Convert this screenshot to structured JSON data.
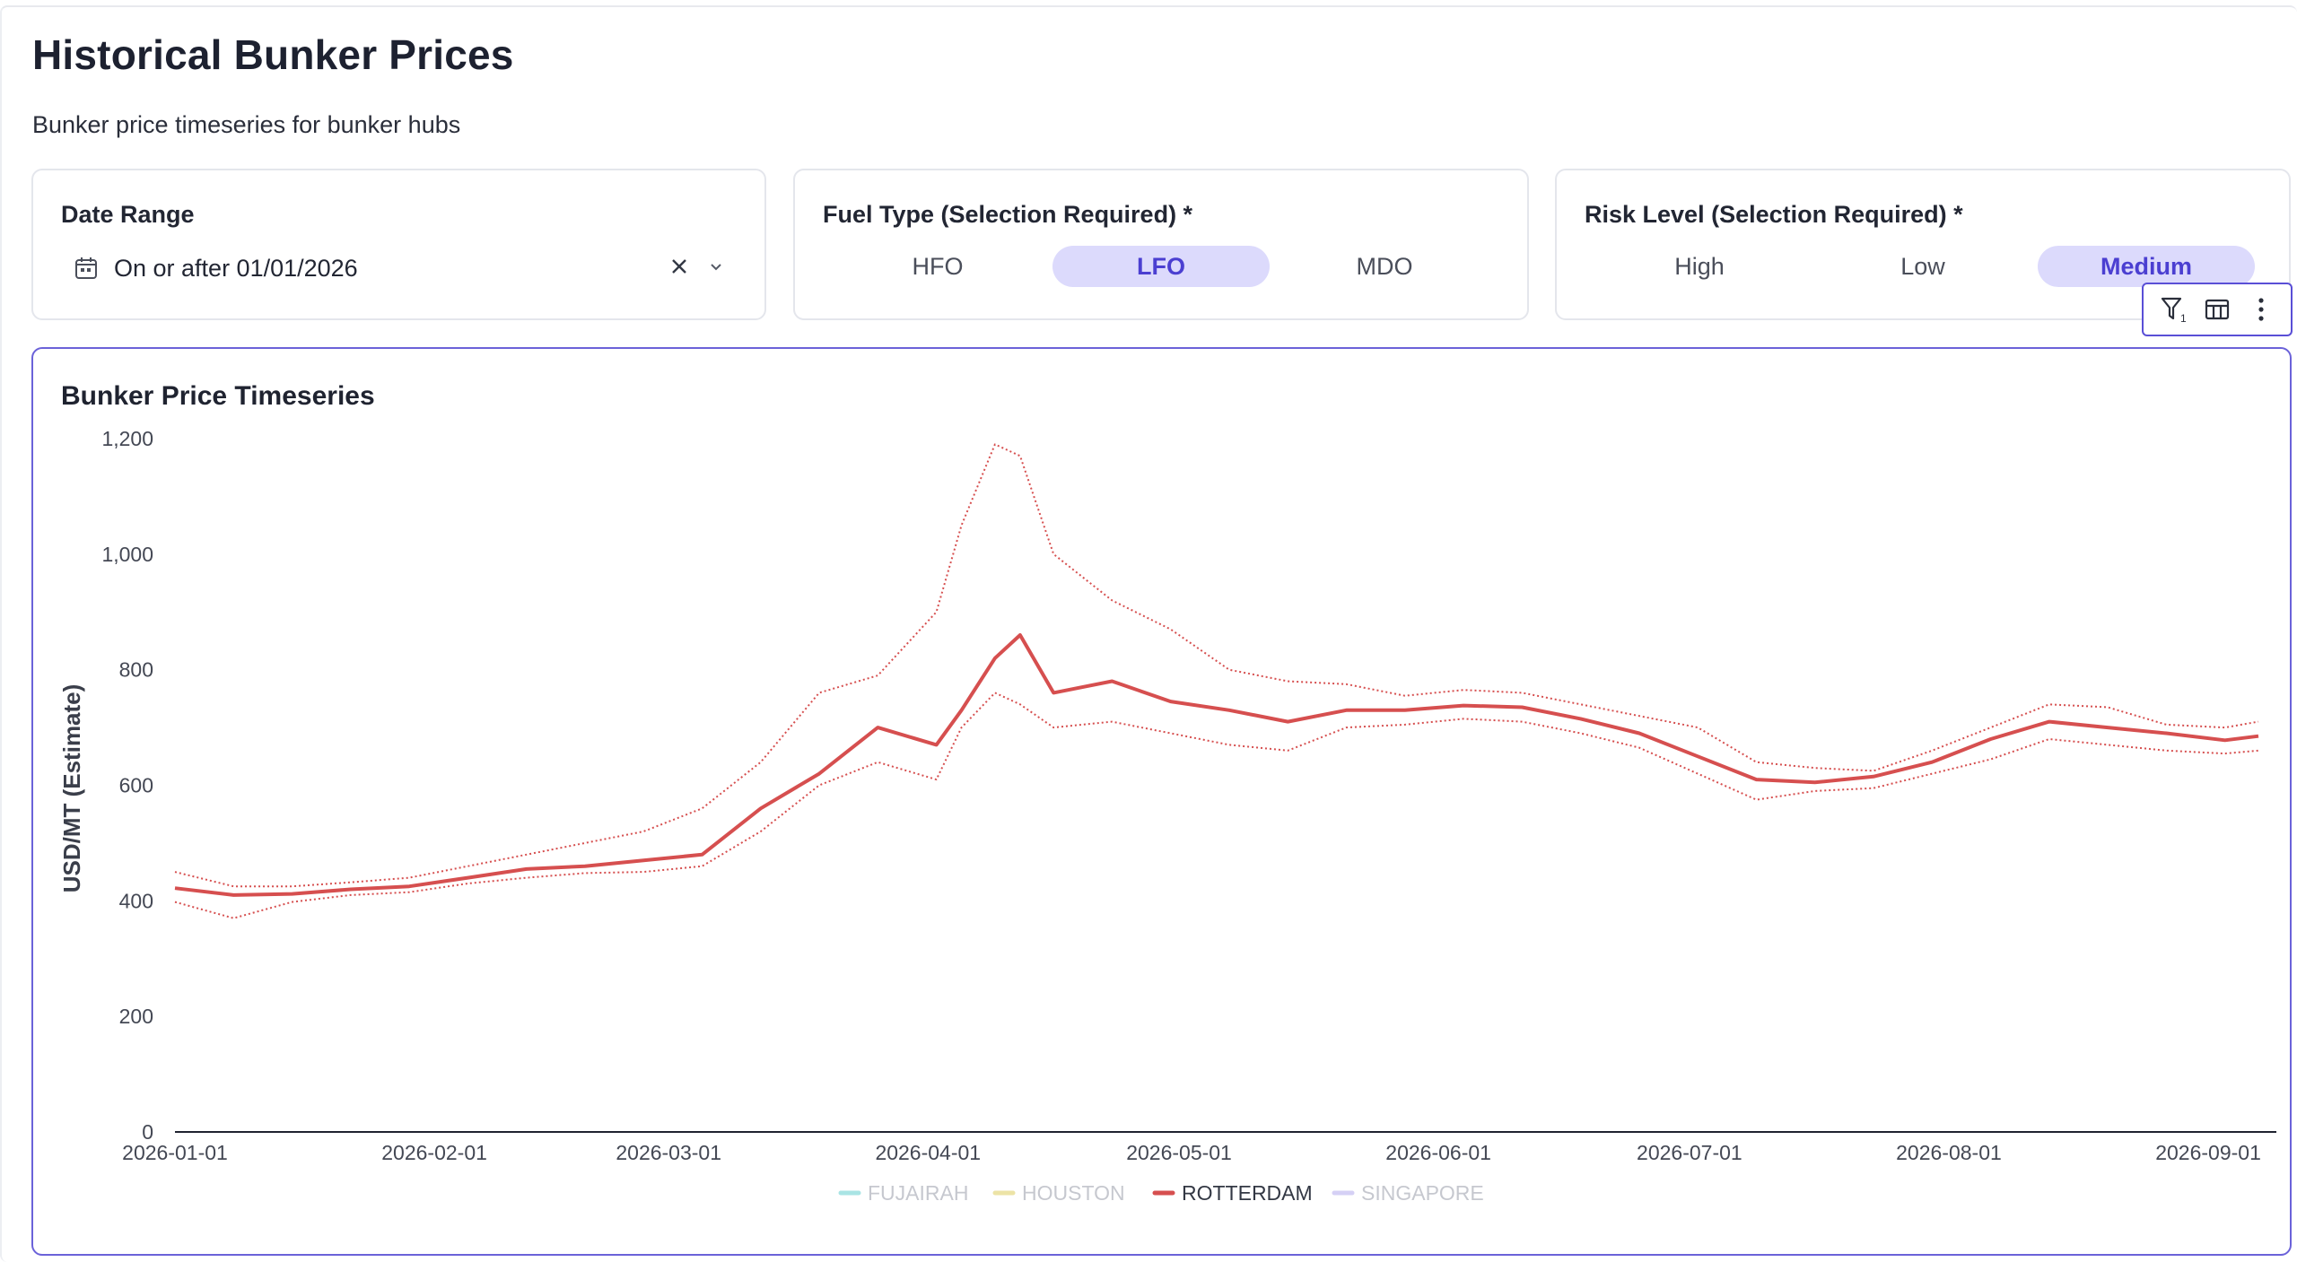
{
  "page": {
    "title": "Historical Bunker Prices",
    "subtitle": "Bunker price timeseries for bunker hubs"
  },
  "filters": {
    "date_range": {
      "label": "Date Range",
      "value": "On or after 01/01/2026",
      "clear_icon": "close-icon",
      "dropdown_icon": "chevron-down-icon"
    },
    "fuel_type": {
      "label": "Fuel Type (Selection Required) *",
      "options": [
        "HFO",
        "LFO",
        "MDO"
      ],
      "selected": "LFO"
    },
    "risk_level": {
      "label": "Risk Level (Selection Required) *",
      "options": [
        "High",
        "Low",
        "Medium"
      ],
      "selected": "Medium"
    }
  },
  "toolbar": {
    "filter_badge": "1",
    "icons": [
      "filter-icon",
      "table-icon",
      "more-vertical-icon"
    ]
  },
  "colors": {
    "accent": "#5b4fd6",
    "selected_bg": "#dcdafc",
    "rotterdam": "#d64f4f",
    "fujairah": "#a9e4e4",
    "houston": "#ece3a6",
    "singapore": "#d5d0f5"
  },
  "chart_data": {
    "type": "line",
    "title": "Bunker Price Timeseries",
    "ylabel": "USD/MT (Estimate)",
    "xlabel": "",
    "ylim": [
      0,
      1200
    ],
    "yticks": [
      0,
      200,
      400,
      600,
      800,
      1000,
      1200
    ],
    "ytick_labels": [
      "0",
      "200",
      "400",
      "600",
      "800",
      "1,000",
      "1,200"
    ],
    "x_start": "2026-01-01",
    "x_end": "2026-09-07",
    "xticks": [
      "2026-01-01",
      "2026-02-01",
      "2026-03-01",
      "2026-04-01",
      "2026-05-01",
      "2026-06-01",
      "2026-07-01",
      "2026-08-01",
      "2026-09-01"
    ],
    "legend": {
      "position": "bottom-center",
      "entries": [
        {
          "name": "FUJAIRAH",
          "active": false
        },
        {
          "name": "HOUSTON",
          "active": false
        },
        {
          "name": "ROTTERDAM",
          "active": true
        },
        {
          "name": "SINGAPORE",
          "active": false
        }
      ]
    },
    "series": [
      {
        "name": "ROTTERDAM",
        "style": "solid",
        "x": [
          "2026-01-01",
          "2026-01-08",
          "2026-01-15",
          "2026-01-22",
          "2026-01-29",
          "2026-02-05",
          "2026-02-12",
          "2026-02-19",
          "2026-02-26",
          "2026-03-05",
          "2026-03-12",
          "2026-03-19",
          "2026-03-26",
          "2026-04-02",
          "2026-04-05",
          "2026-04-09",
          "2026-04-12",
          "2026-04-16",
          "2026-04-23",
          "2026-04-30",
          "2026-05-07",
          "2026-05-14",
          "2026-05-21",
          "2026-05-28",
          "2026-06-04",
          "2026-06-11",
          "2026-06-18",
          "2026-06-25",
          "2026-07-02",
          "2026-07-09",
          "2026-07-16",
          "2026-07-23",
          "2026-07-30",
          "2026-08-06",
          "2026-08-13",
          "2026-08-20",
          "2026-08-27",
          "2026-09-03",
          "2026-09-07"
        ],
        "values": [
          422,
          410,
          412,
          420,
          425,
          440,
          455,
          460,
          470,
          480,
          560,
          620,
          700,
          670,
          730,
          820,
          860,
          760,
          780,
          745,
          730,
          710,
          730,
          730,
          738,
          735,
          715,
          690,
          650,
          610,
          605,
          615,
          640,
          680,
          710,
          700,
          690,
          678,
          685
        ]
      },
      {
        "name": "ROTTERDAM upper",
        "style": "dotted",
        "x": [
          "2026-01-01",
          "2026-01-08",
          "2026-01-15",
          "2026-01-22",
          "2026-01-29",
          "2026-02-05",
          "2026-02-12",
          "2026-02-19",
          "2026-02-26",
          "2026-03-05",
          "2026-03-12",
          "2026-03-19",
          "2026-03-26",
          "2026-04-02",
          "2026-04-05",
          "2026-04-09",
          "2026-04-12",
          "2026-04-16",
          "2026-04-23",
          "2026-04-30",
          "2026-05-07",
          "2026-05-14",
          "2026-05-21",
          "2026-05-28",
          "2026-06-04",
          "2026-06-11",
          "2026-06-18",
          "2026-06-25",
          "2026-07-02",
          "2026-07-09",
          "2026-07-16",
          "2026-07-23",
          "2026-07-30",
          "2026-08-06",
          "2026-08-13",
          "2026-08-20",
          "2026-08-27",
          "2026-09-03",
          "2026-09-07"
        ],
        "values": [
          450,
          425,
          425,
          432,
          440,
          460,
          480,
          500,
          520,
          560,
          640,
          760,
          790,
          900,
          1050,
          1190,
          1170,
          1000,
          920,
          870,
          800,
          780,
          775,
          755,
          765,
          760,
          740,
          720,
          700,
          640,
          630,
          625,
          660,
          700,
          740,
          735,
          705,
          700,
          710
        ]
      },
      {
        "name": "ROTTERDAM lower",
        "style": "dotted",
        "x": [
          "2026-01-01",
          "2026-01-08",
          "2026-01-15",
          "2026-01-22",
          "2026-01-29",
          "2026-02-05",
          "2026-02-12",
          "2026-02-19",
          "2026-02-26",
          "2026-03-05",
          "2026-03-12",
          "2026-03-19",
          "2026-03-26",
          "2026-04-02",
          "2026-04-05",
          "2026-04-09",
          "2026-04-12",
          "2026-04-16",
          "2026-04-23",
          "2026-04-30",
          "2026-05-07",
          "2026-05-14",
          "2026-05-21",
          "2026-05-28",
          "2026-06-04",
          "2026-06-11",
          "2026-06-18",
          "2026-06-25",
          "2026-07-02",
          "2026-07-09",
          "2026-07-16",
          "2026-07-23",
          "2026-07-30",
          "2026-08-06",
          "2026-08-13",
          "2026-08-20",
          "2026-08-27",
          "2026-09-03",
          "2026-09-07"
        ],
        "values": [
          398,
          370,
          398,
          410,
          415,
          430,
          440,
          448,
          450,
          460,
          520,
          600,
          640,
          610,
          700,
          760,
          740,
          700,
          710,
          690,
          670,
          660,
          700,
          705,
          715,
          710,
          690,
          665,
          620,
          575,
          590,
          595,
          620,
          645,
          680,
          670,
          660,
          655,
          660
        ]
      }
    ]
  }
}
